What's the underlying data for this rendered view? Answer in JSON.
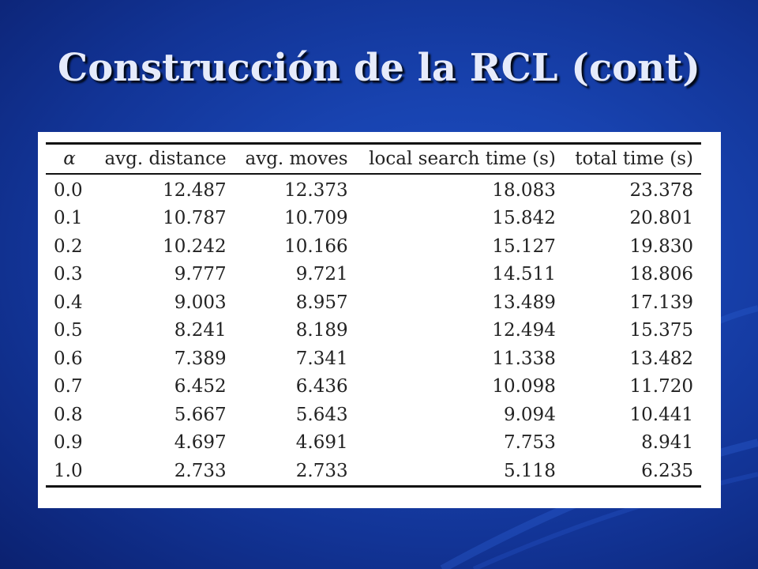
{
  "slide": {
    "title": "Construcción de la RCL (cont)",
    "background_color": "#1843b0",
    "title_color": "#e6ebfb"
  },
  "table": {
    "columns": [
      "α",
      "avg. distance",
      "avg. moves",
      "local search time (s)",
      "total time (s)"
    ],
    "rows": [
      [
        "0.0",
        "12.487",
        "12.373",
        "18.083",
        "23.378"
      ],
      [
        "0.1",
        "10.787",
        "10.709",
        "15.842",
        "20.801"
      ],
      [
        "0.2",
        "10.242",
        "10.166",
        "15.127",
        "19.830"
      ],
      [
        "0.3",
        "9.777",
        "9.721",
        "14.511",
        "18.806"
      ],
      [
        "0.4",
        "9.003",
        "8.957",
        "13.489",
        "17.139"
      ],
      [
        "0.5",
        "8.241",
        "8.189",
        "12.494",
        "15.375"
      ],
      [
        "0.6",
        "7.389",
        "7.341",
        "11.338",
        "13.482"
      ],
      [
        "0.7",
        "6.452",
        "6.436",
        "10.098",
        "11.720"
      ],
      [
        "0.8",
        "5.667",
        "5.643",
        "9.094",
        "10.441"
      ],
      [
        "0.9",
        "4.697",
        "4.691",
        "7.753",
        "8.941"
      ],
      [
        "1.0",
        "2.733",
        "2.733",
        "5.118",
        "6.235"
      ]
    ]
  }
}
